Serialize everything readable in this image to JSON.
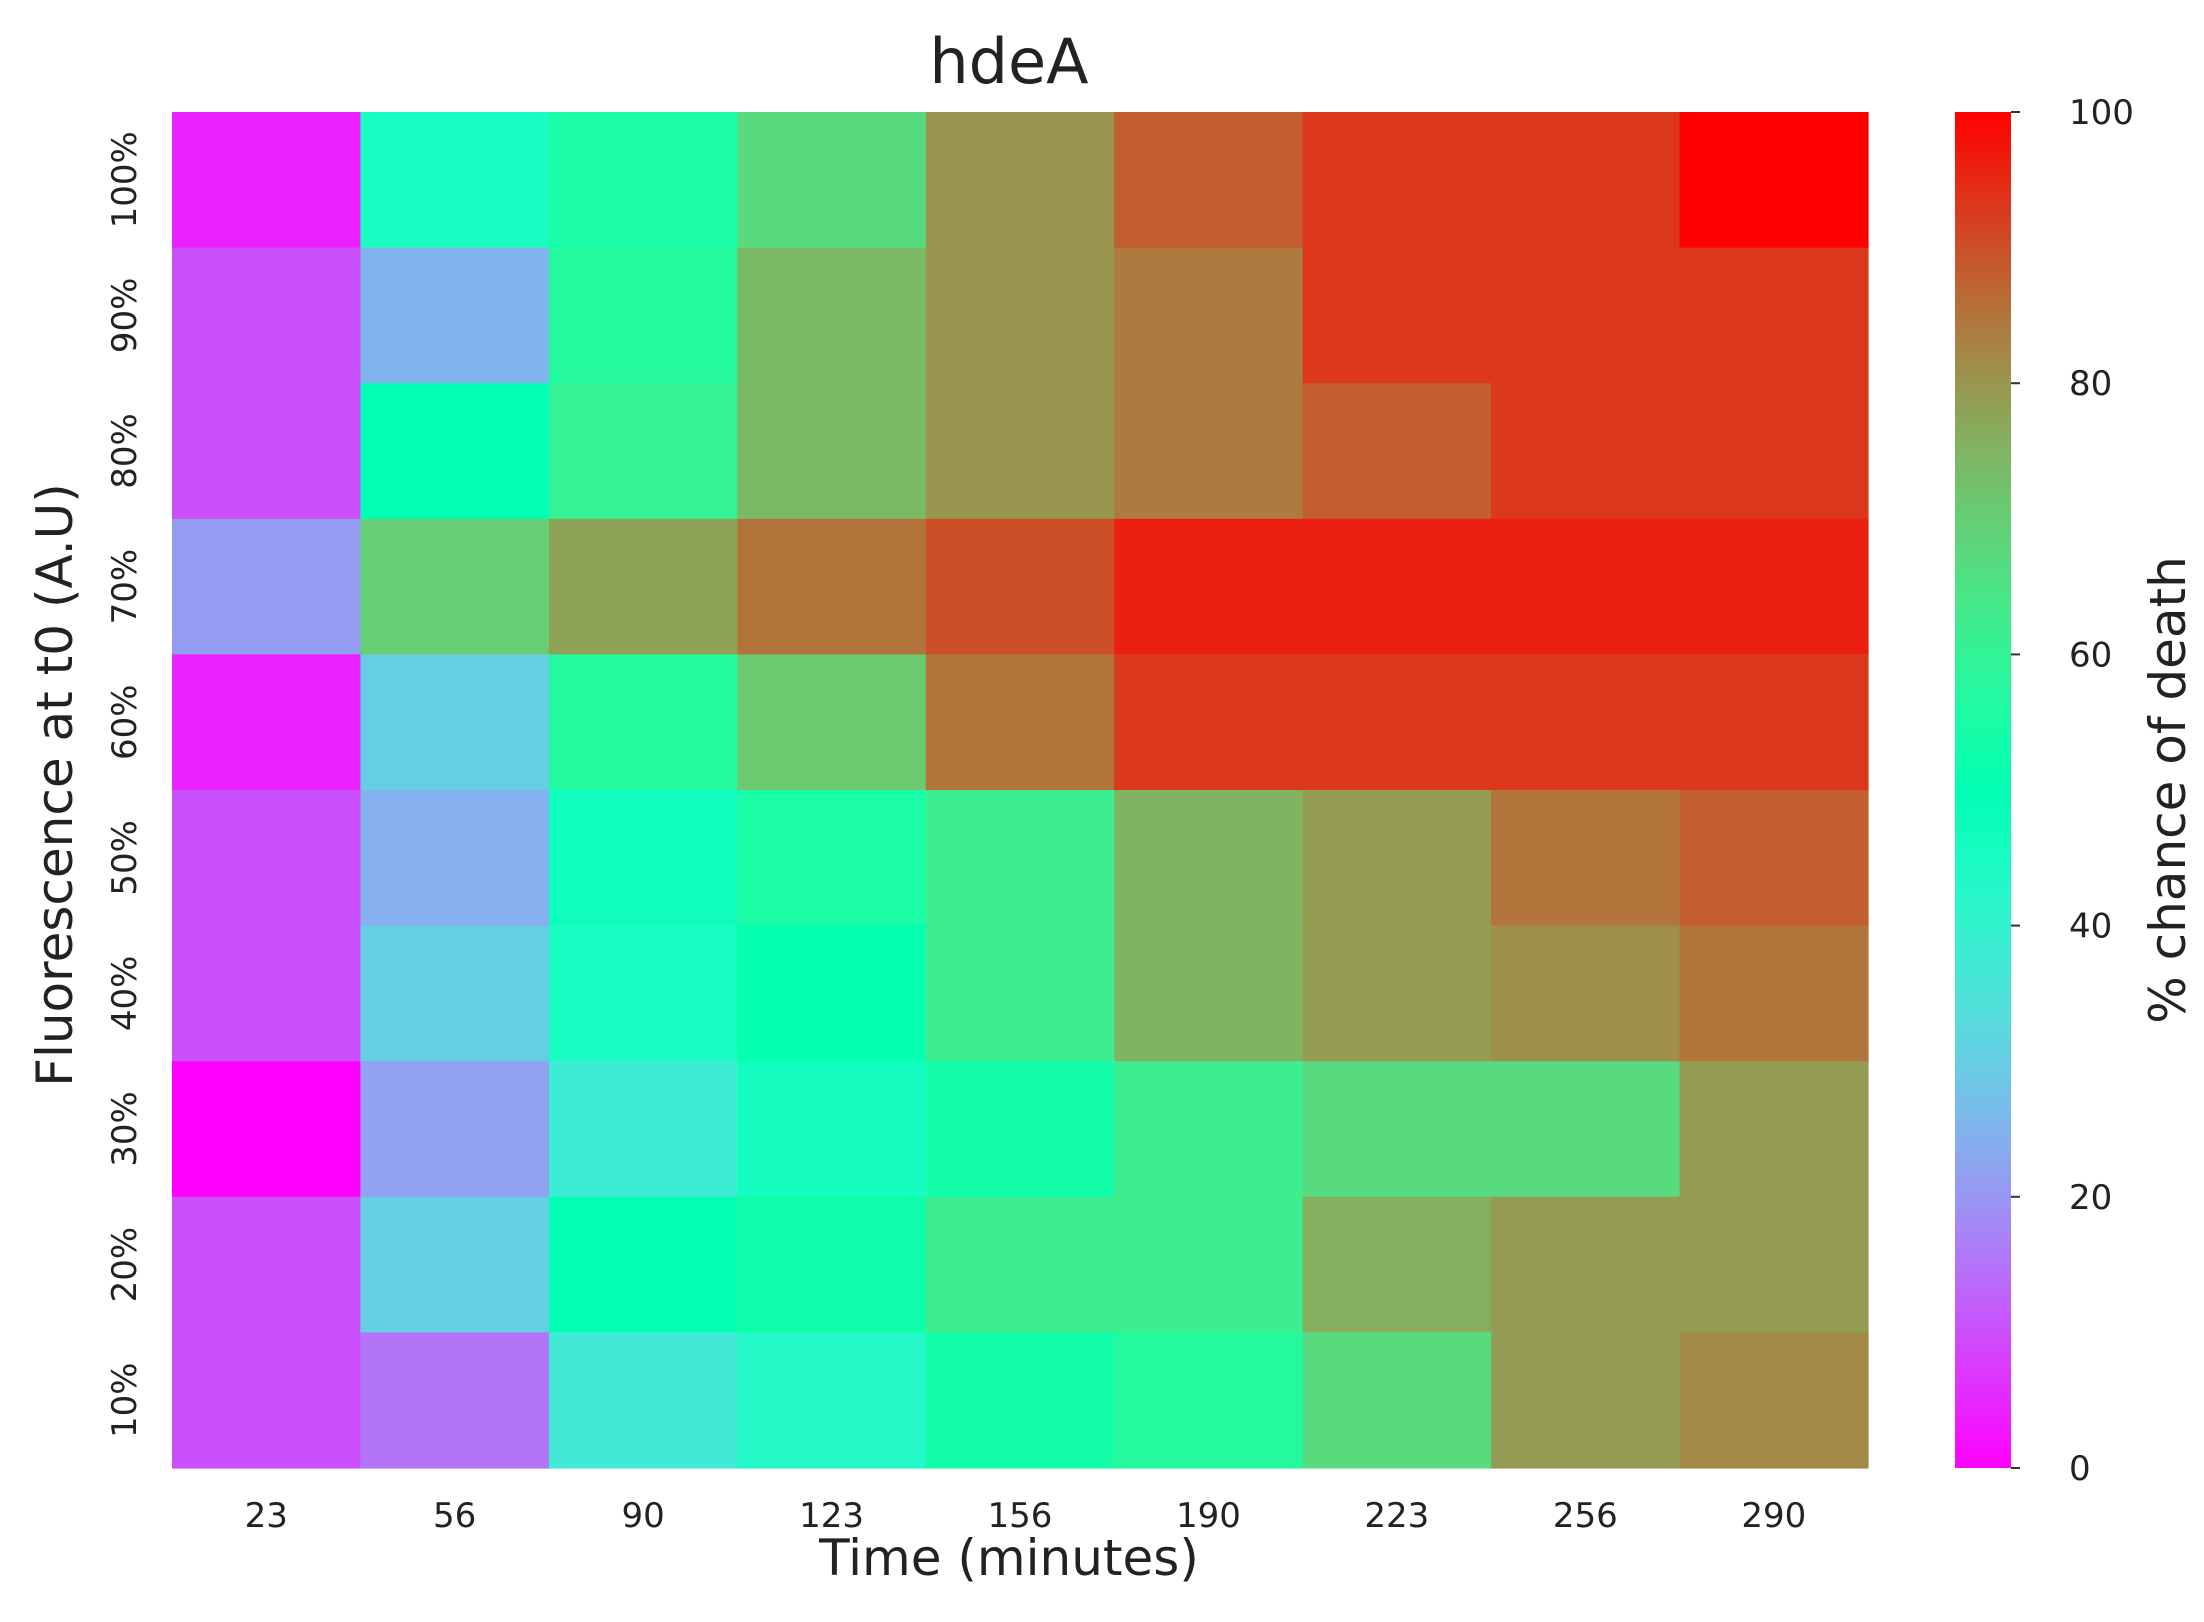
{
  "chart_data": {
    "type": "heatmap",
    "title": "hdeA",
    "xlabel": "Time (minutes)",
    "ylabel": "Fluorescence at t0 (A.U)",
    "colorbar_label": "% chance of death",
    "colormap": "rainbow",
    "vmin": 0,
    "vmax": 100,
    "colorbar_ticks": [
      "0",
      "20",
      "40",
      "60",
      "80",
      "100"
    ],
    "x": [
      "23",
      "56",
      "90",
      "123",
      "156",
      "190",
      "223",
      "256",
      "290"
    ],
    "y": [
      "100%",
      "90%",
      "80%",
      "70%",
      "60%",
      "50%",
      "40%",
      "30%",
      "20%",
      "10%"
    ],
    "values": [
      [
        4,
        45,
        55,
        67,
        80,
        88,
        93,
        93,
        100
      ],
      [
        10,
        25,
        57,
        74,
        80,
        84,
        93,
        93,
        93
      ],
      [
        10,
        50,
        60,
        74,
        80,
        84,
        88,
        93,
        93
      ],
      [
        21,
        70,
        78,
        85,
        90,
        96,
        96,
        96,
        96
      ],
      [
        4,
        30,
        57,
        71,
        85,
        93,
        93,
        93,
        93
      ],
      [
        10,
        24,
        47,
        55,
        62,
        75,
        79,
        85,
        88
      ],
      [
        10,
        30,
        45,
        51,
        62,
        75,
        79,
        81,
        85
      ],
      [
        0,
        22,
        38,
        46,
        54,
        62,
        67,
        67,
        79
      ],
      [
        10,
        30,
        50,
        53,
        62,
        62,
        76,
        79,
        79
      ],
      [
        10,
        15,
        37,
        43,
        54,
        57,
        67,
        79,
        82
      ]
    ]
  }
}
